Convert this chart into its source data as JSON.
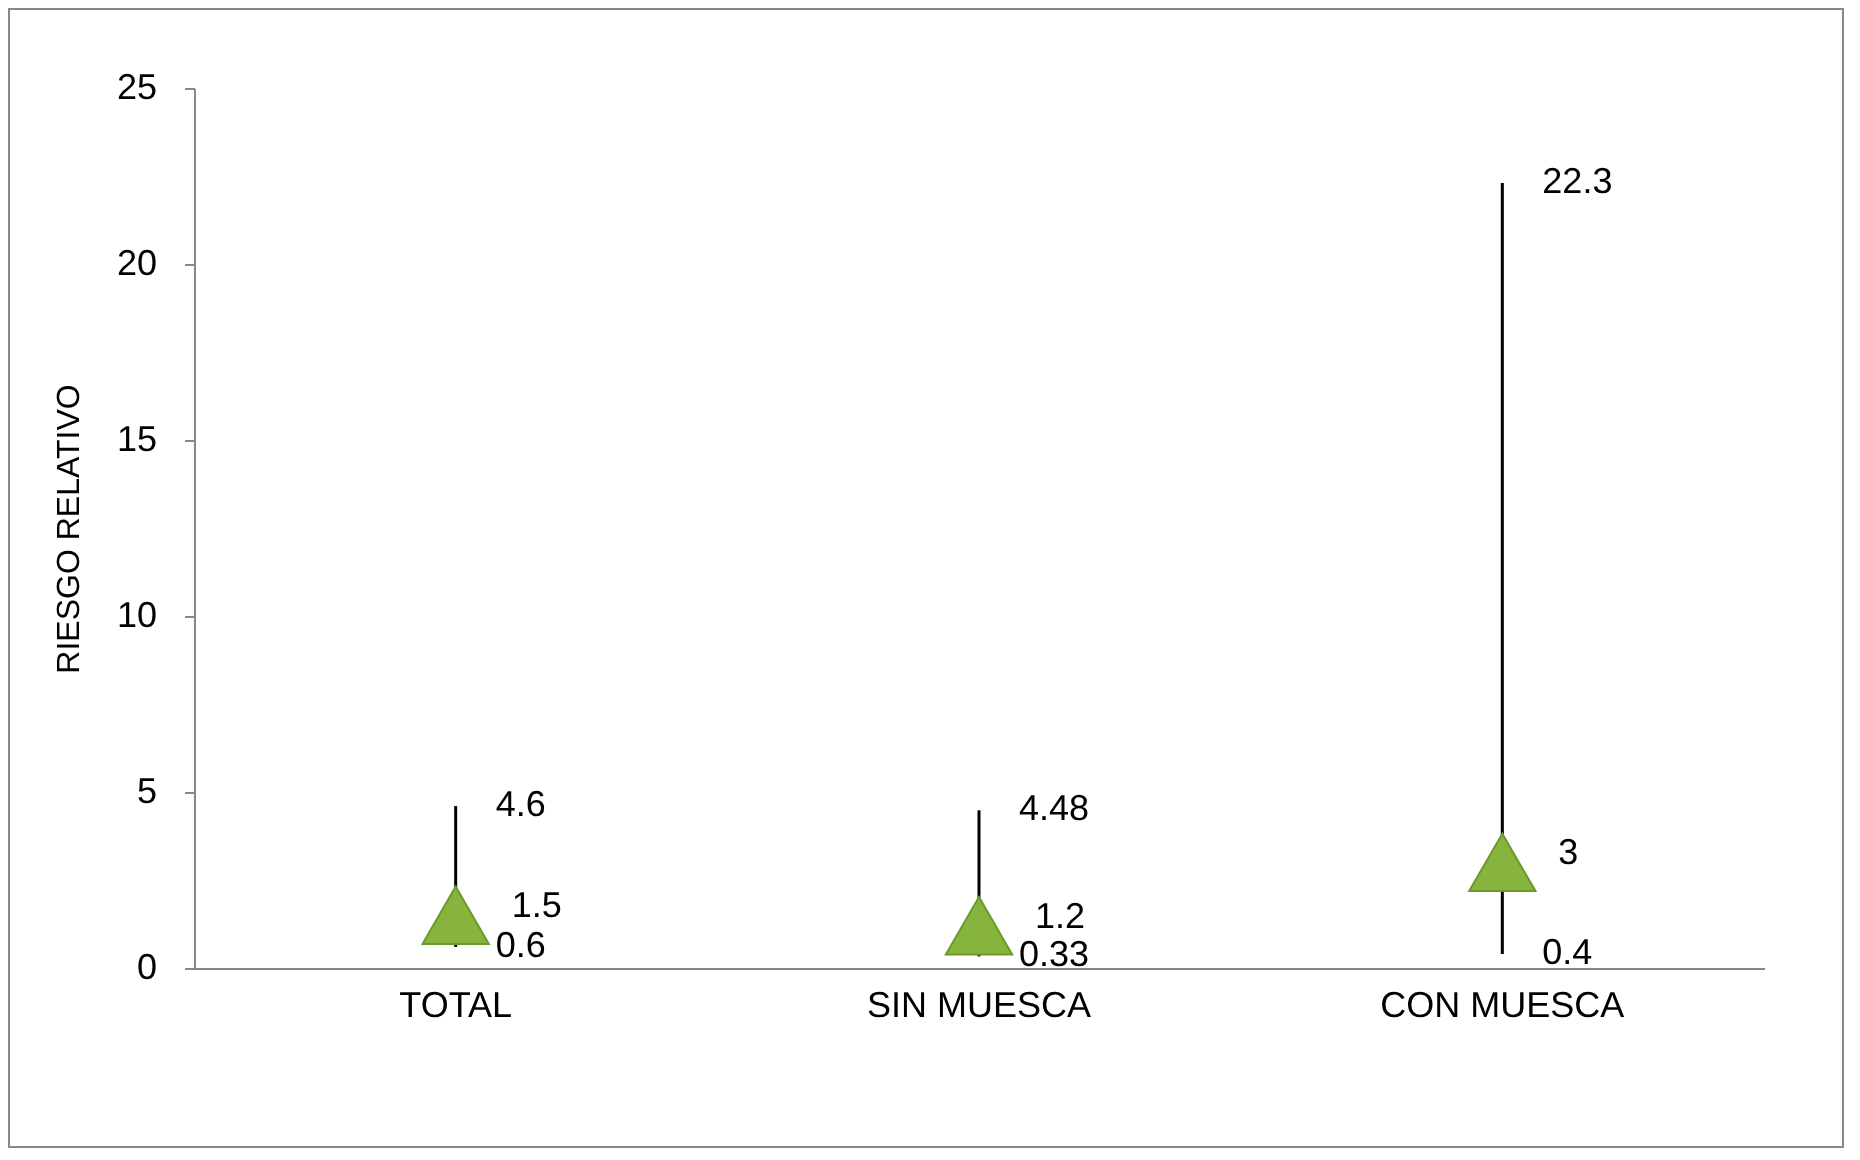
{
  "chart_data": {
    "type": "scatter",
    "ylabel": "RIESGO RELATIVO",
    "categories": [
      "TOTAL",
      "SIN MUESCA",
      "CON MUESCA"
    ],
    "series": [
      {
        "color": "#86b43c",
        "values": [
          1.5,
          1.2,
          3
        ],
        "errors": [
          [
            0.6,
            4.6
          ],
          [
            0.33,
            4.48
          ],
          [
            0.4,
            22.3
          ]
        ]
      }
    ],
    "data_labels": true,
    "marker": "triangle",
    "ylim": [
      0,
      25
    ],
    "yticks": [
      0,
      5,
      10,
      15,
      20,
      25
    ],
    "annotations": [
      {
        "text": "4.6",
        "x": "TOTAL",
        "y": 4.6
      },
      {
        "text": "0.6",
        "x": "TOTAL",
        "y": 0.6
      },
      {
        "text": "4.48",
        "x": "SIN MUESCA",
        "y": 4.48
      },
      {
        "text": "0.33",
        "x": "SIN MUESCA",
        "y": 0.33
      },
      {
        "text": "22.3",
        "x": "CON MUESCA",
        "y": 22.3
      },
      {
        "text": "0.4",
        "x": "CON MUESCA",
        "y": 0.4
      }
    ]
  }
}
